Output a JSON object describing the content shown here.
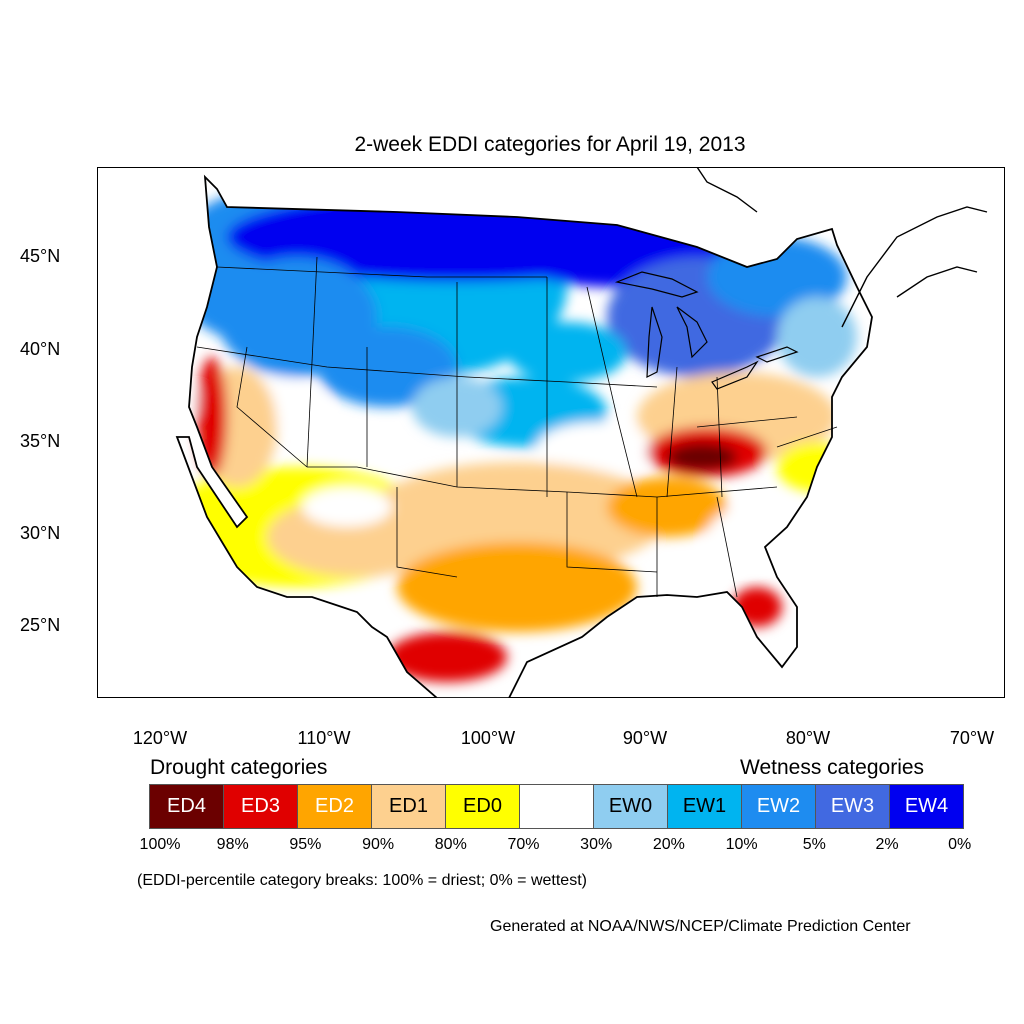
{
  "title": "2-week EDDI categories for April 19, 2013",
  "lat_labels": [
    "45°N",
    "40°N",
    "35°N",
    "30°N",
    "25°N"
  ],
  "lon_labels": [
    "120°W",
    "110°W",
    "100°W",
    "90°W",
    "80°W",
    "70°W"
  ],
  "drought_label": "Drought categories",
  "wetness_label": "Wetness categories",
  "categories": [
    {
      "code": "ED4",
      "color": "#6b0000",
      "text_color": "#ffffff"
    },
    {
      "code": "ED3",
      "color": "#e00000",
      "text_color": "#ffffff"
    },
    {
      "code": "ED2",
      "color": "#ffa500",
      "text_color": "#ffffff"
    },
    {
      "code": "ED1",
      "color": "#fdd08f",
      "text_color": "#000000"
    },
    {
      "code": "ED0",
      "color": "#ffff00",
      "text_color": "#000000"
    },
    {
      "code": "",
      "color": "#ffffff",
      "text_color": "#000000"
    },
    {
      "code": "EW0",
      "color": "#8fcdf0",
      "text_color": "#000000"
    },
    {
      "code": "EW1",
      "color": "#00b4f0",
      "text_color": "#000000"
    },
    {
      "code": "EW2",
      "color": "#1e8cf0",
      "text_color": "#ffffff"
    },
    {
      "code": "EW3",
      "color": "#4169e1",
      "text_color": "#ffffff"
    },
    {
      "code": "EW4",
      "color": "#0000f0",
      "text_color": "#ffffff"
    }
  ],
  "breaks": [
    "100%",
    "98%",
    "95%",
    "90%",
    "80%",
    "70%",
    "30%",
    "20%",
    "10%",
    "5%",
    "2%",
    "0%"
  ],
  "note": "(EDDI-percentile category breaks: 100% = driest; 0% = wettest)",
  "credit": "Generated at NOAA/NWS/NCEP/Climate Prediction Center"
}
